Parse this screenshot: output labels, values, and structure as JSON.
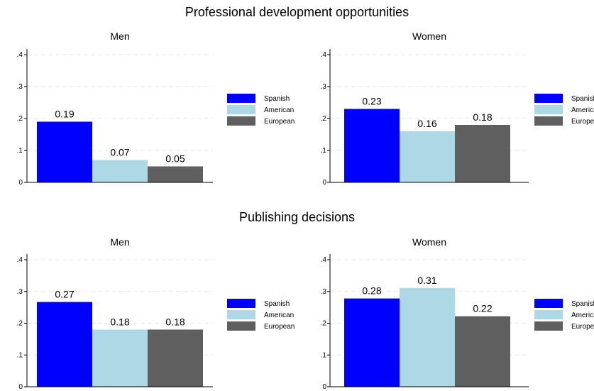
{
  "chart_data": {
    "type": "bar",
    "groups": [
      {
        "title": "Professional development opportunities",
        "panels": [
          {
            "title": "Men",
            "values": [
              0.19,
              0.07,
              0.05
            ],
            "labels": [
              "0.19",
              "0.07",
              "0.05"
            ]
          },
          {
            "title": "Women",
            "values": [
              0.23,
              0.16,
              0.18
            ],
            "labels": [
              "0.23",
              "0.16",
              "0.18"
            ]
          }
        ]
      },
      {
        "title": "Publishing decisions",
        "panels": [
          {
            "title": "Men",
            "values": [
              0.267,
              0.18,
              0.18
            ],
            "labels": [
              "0.27",
              "0.18",
              "0.18"
            ]
          },
          {
            "title": "Women",
            "values": [
              0.278,
              0.311,
              0.222
            ],
            "labels": [
              "0.28",
              "0.31",
              "0.22"
            ]
          }
        ]
      }
    ],
    "series": [
      {
        "name": "Spanish",
        "color": "#0000ff"
      },
      {
        "name": "American",
        "color": "#add8e6"
      },
      {
        "name": "European",
        "color": "#5f5f5f"
      }
    ],
    "ylim": [
      0,
      0.4
    ],
    "yticks": [
      0,
      0.1,
      0.2,
      0.3,
      0.4
    ],
    "ytick_labels": [
      "0",
      ".1",
      ".2",
      ".3",
      ".4"
    ],
    "grid": true,
    "legend_position": "right"
  }
}
